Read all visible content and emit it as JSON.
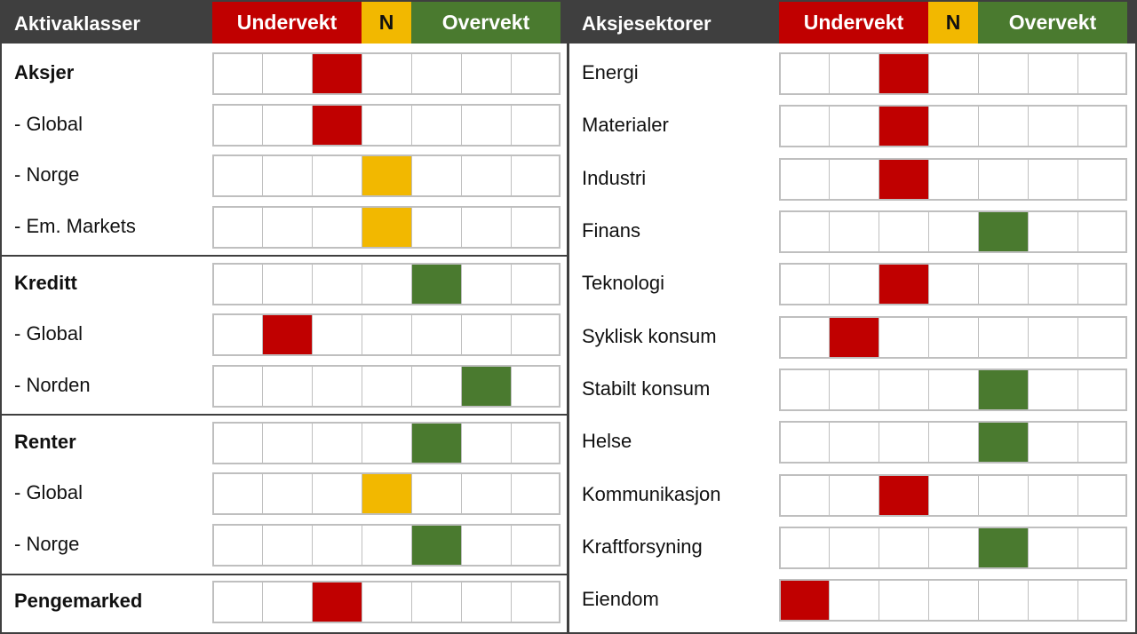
{
  "colors": {
    "header_bg": "#3f3f3f",
    "under": "#c00000",
    "neutral": "#f2b800",
    "over": "#4a7a2f"
  },
  "scale_positions": 7,
  "asset_classes": {
    "title": "Aktivaklasser",
    "under_label": "Undervekt",
    "neutral_label": "N",
    "over_label": "Overvekt",
    "rows": [
      {
        "label": "Aksjer",
        "bold": true,
        "position": 3,
        "color": "red"
      },
      {
        "label": "- Global",
        "bold": false,
        "position": 3,
        "color": "red"
      },
      {
        "label": "- Norge",
        "bold": false,
        "position": 4,
        "color": "yellow"
      },
      {
        "label": "- Em. Markets",
        "bold": false,
        "position": 4,
        "color": "yellow"
      },
      {
        "label": "Kreditt",
        "bold": true,
        "position": 5,
        "color": "green"
      },
      {
        "label": "- Global",
        "bold": false,
        "position": 2,
        "color": "red"
      },
      {
        "label": "- Norden",
        "bold": false,
        "position": 6,
        "color": "green"
      },
      {
        "label": "Renter",
        "bold": true,
        "position": 5,
        "color": "green"
      },
      {
        "label": "- Global",
        "bold": false,
        "position": 4,
        "color": "yellow"
      },
      {
        "label": "- Norge",
        "bold": false,
        "position": 5,
        "color": "green"
      },
      {
        "label": "Pengemarked",
        "bold": true,
        "position": 3,
        "color": "red"
      }
    ]
  },
  "sectors": {
    "title": "Aksjesektorer",
    "under_label": "Undervekt",
    "neutral_label": "N",
    "over_label": "Overvekt",
    "rows": [
      {
        "label": "Energi",
        "position": 3,
        "color": "red"
      },
      {
        "label": "Materialer",
        "position": 3,
        "color": "red"
      },
      {
        "label": "Industri",
        "position": 3,
        "color": "red"
      },
      {
        "label": "Finans",
        "position": 5,
        "color": "green"
      },
      {
        "label": "Teknologi",
        "position": 3,
        "color": "red"
      },
      {
        "label": "Syklisk konsum",
        "position": 2,
        "color": "red"
      },
      {
        "label": "Stabilt konsum",
        "position": 5,
        "color": "green"
      },
      {
        "label": "Helse",
        "position": 5,
        "color": "green"
      },
      {
        "label": "Kommunikasjon",
        "position": 3,
        "color": "red"
      },
      {
        "label": "Kraftforsyning",
        "position": 5,
        "color": "green"
      },
      {
        "label": "Eiendom",
        "position": 1,
        "color": "red"
      }
    ]
  }
}
